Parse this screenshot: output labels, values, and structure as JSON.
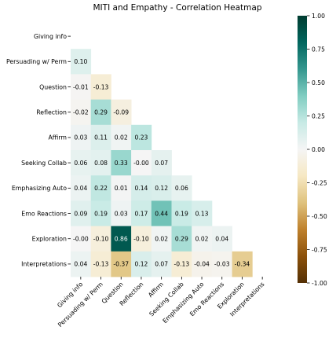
{
  "chart_data": {
    "type": "heatmap",
    "title": "MITI and Empathy - Correlation Heatmap",
    "labels": [
      "Giving info",
      "Persuading w/ Perm",
      "Question",
      "Reflection",
      "Affirm",
      "Seeking Collab",
      "Emphasizing Auto",
      "Emo Reactions",
      "Exploration",
      "Interpretations"
    ],
    "mask": "upper-triangle-including-diagonal",
    "matrix": [
      [
        null,
        null,
        null,
        null,
        null,
        null,
        null,
        null,
        null,
        null
      ],
      [
        "0.10",
        null,
        null,
        null,
        null,
        null,
        null,
        null,
        null,
        null
      ],
      [
        "-0.01",
        "-0.13",
        null,
        null,
        null,
        null,
        null,
        null,
        null,
        null
      ],
      [
        "-0.02",
        "0.29",
        "-0.09",
        null,
        null,
        null,
        null,
        null,
        null,
        null
      ],
      [
        "0.03",
        "0.11",
        "0.02",
        "0.23",
        null,
        null,
        null,
        null,
        null,
        null
      ],
      [
        "0.06",
        "0.08",
        "0.33",
        "-0.00",
        "0.07",
        null,
        null,
        null,
        null,
        null
      ],
      [
        "0.04",
        "0.22",
        "0.01",
        "0.14",
        "0.12",
        "0.06",
        null,
        null,
        null,
        null
      ],
      [
        "0.09",
        "0.19",
        "0.03",
        "0.17",
        "0.44",
        "0.19",
        "0.13",
        null,
        null,
        null
      ],
      [
        "-0.00",
        "-0.10",
        "0.86",
        "-0.10",
        "0.02",
        "0.29",
        "0.02",
        "0.04",
        null,
        null
      ],
      [
        "0.04",
        "-0.13",
        "-0.37",
        "0.12",
        "0.07",
        "-0.13",
        "-0.04",
        "-0.03",
        "-0.34",
        null
      ]
    ],
    "colorbar": {
      "colormap": "BrBG",
      "range": [
        -1.0,
        1.0
      ],
      "ticks": [
        "1.00",
        "0.75",
        "0.50",
        "0.25",
        "0.00",
        "-0.25",
        "-0.50",
        "-0.75",
        "-1.00"
      ]
    }
  }
}
